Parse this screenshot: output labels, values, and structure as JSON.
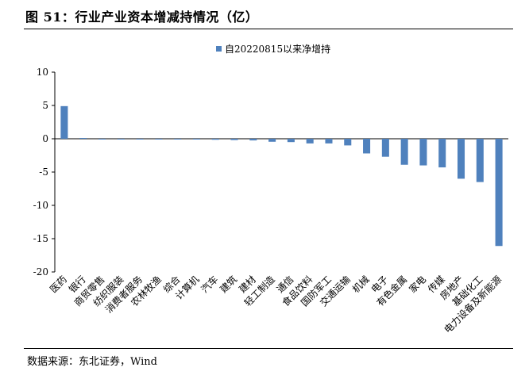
{
  "header": {
    "title": "图  51：行业产业资本增减持情况（亿）"
  },
  "footer": {
    "source": "数据来源：东北证券，Wind"
  },
  "chart_data": {
    "type": "bar",
    "title": "",
    "xlabel": "",
    "ylabel": "",
    "ylim": [
      -20,
      10
    ],
    "yticks": [
      10,
      5,
      0,
      -5,
      -10,
      -15,
      -20
    ],
    "grid": false,
    "legend_position": "top-center",
    "bar_color": "#4F81BD",
    "categories": [
      "医药",
      "银行",
      "商贸零售",
      "纺织服装",
      "消费者服务",
      "农林牧渔",
      "综合",
      "计算机",
      "汽车",
      "建筑",
      "建材",
      "轻工制造",
      "通信",
      "食品饮料",
      "国防军工",
      "交通运输",
      "机械",
      "电子",
      "有色金属",
      "家电",
      "传媒",
      "房地产",
      "基础化工",
      "电力设备及新能源"
    ],
    "series": [
      {
        "name": "自20220815以来净增持",
        "values": [
          4.9,
          0.02,
          -0.02,
          -0.03,
          -0.03,
          -0.04,
          -0.05,
          -0.12,
          -0.15,
          -0.2,
          -0.25,
          -0.45,
          -0.5,
          -0.7,
          -0.7,
          -1.0,
          -2.2,
          -2.7,
          -3.9,
          -4.0,
          -4.3,
          -6.0,
          -6.5,
          -16.1
        ]
      }
    ]
  }
}
